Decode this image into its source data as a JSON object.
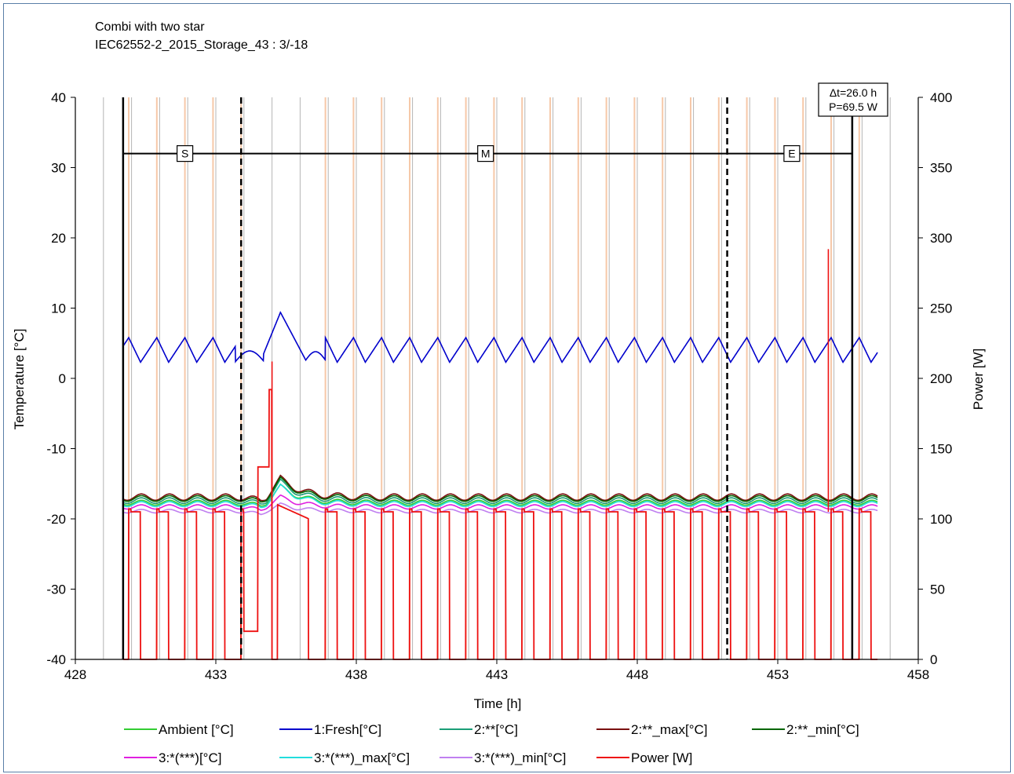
{
  "chart_data": {
    "type": "line",
    "title": "Combi with two star",
    "subtitle": "IEC62552-2_2015_Storage_43 : 3/-18",
    "xlabel": "Time [h]",
    "ylabel": "Temperature [°C]",
    "y2label": "Power [W]",
    "xlim": [
      428,
      458
    ],
    "ylim": [
      -40,
      40
    ],
    "y2lim": [
      0,
      400
    ],
    "x_ticks": [
      428,
      433,
      438,
      443,
      448,
      453,
      458
    ],
    "y_ticks": [
      -40,
      -30,
      -20,
      -10,
      0,
      10,
      20,
      30,
      40
    ],
    "y2_ticks": [
      0,
      50,
      100,
      150,
      200,
      250,
      300,
      350,
      400
    ],
    "grid": true,
    "legend_position": "bottom",
    "period_markers": {
      "solid_lines": [
        429.7,
        455.65
      ],
      "dashed_lines": [
        433.9,
        451.2
      ],
      "bar_y": 32,
      "labels": [
        {
          "text": "S",
          "x": 431.9
        },
        {
          "text": "M",
          "x": 442.6
        },
        {
          "text": "E",
          "x": 453.5
        }
      ]
    },
    "annotation": {
      "line1": "Δt=26.0 h",
      "line2": "P=69.5 W",
      "x": 455.65
    },
    "series": [
      {
        "name": "Ambient [°C]",
        "color": "#33cc33",
        "axis": "left",
        "kind": "ripple",
        "values": {
          "mean": -17.7,
          "amp": 0.35,
          "bump": 2.4
        }
      },
      {
        "name": "1:Fresh[°C]",
        "color": "#0000cc",
        "axis": "left",
        "kind": "fresh",
        "values": {
          "min": 2.3,
          "max": 5.8,
          "peak": 9.4
        }
      },
      {
        "name": "2:**[°C]",
        "color": "#1a9e77",
        "axis": "left",
        "kind": "ripple",
        "values": {
          "mean": -17.4,
          "amp": 0.4,
          "bump": 2.8
        }
      },
      {
        "name": "2:**_max[°C]",
        "color": "#7a1010",
        "axis": "left",
        "kind": "ripple",
        "values": {
          "mean": -16.9,
          "amp": 0.45,
          "bump": 2.8
        }
      },
      {
        "name": "2:**_min[°C]",
        "color": "#006600",
        "axis": "left",
        "kind": "ripple",
        "values": {
          "mean": -17.1,
          "amp": 0.4,
          "bump": 2.8
        }
      },
      {
        "name": "3:*(***)[°C]",
        "color": "#e020e0",
        "axis": "left",
        "kind": "ripple",
        "values": {
          "mean": -18.3,
          "amp": 0.3,
          "bump": 1.5
        }
      },
      {
        "name": "3:*(***)_max[°C]",
        "color": "#22dddd",
        "axis": "left",
        "kind": "ripple",
        "values": {
          "mean": -17.9,
          "amp": 0.35,
          "bump": 2.6
        }
      },
      {
        "name": "3:*(***)_min[°C]",
        "color": "#c080f0",
        "axis": "left",
        "kind": "ripple",
        "values": {
          "mean": -18.9,
          "amp": 0.25,
          "bump": 1.0
        }
      },
      {
        "name": "Power [W]",
        "color": "#ee1111",
        "axis": "right",
        "kind": "power",
        "values": {
          "on": 105,
          "off": 0,
          "spike1": 212,
          "spike2": 292,
          "defrost": 137
        }
      }
    ]
  }
}
